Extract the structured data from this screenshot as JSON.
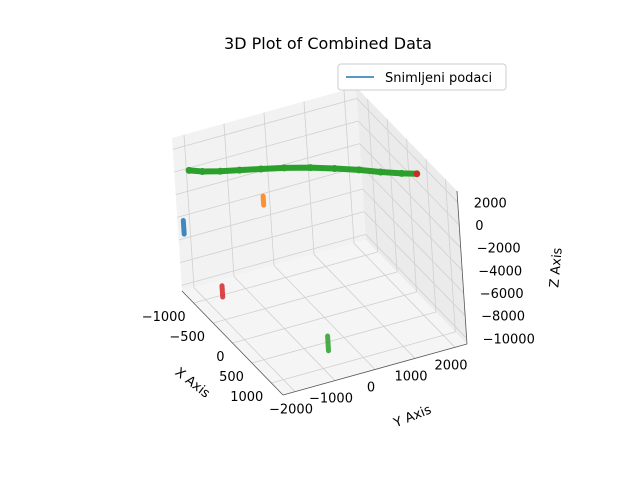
{
  "chart_data": {
    "type": "scatter3d",
    "title": "3D Plot of Combined Data",
    "xlabel": "X Axis",
    "ylabel": "Y Axis",
    "zlabel": "Z Axis",
    "xlim": [
      -1300,
      1300
    ],
    "ylim": [
      -2300,
      2300
    ],
    "zlim": [
      -10500,
      3000
    ],
    "x_ticks": [
      -1000,
      -500,
      0,
      500,
      1000
    ],
    "y_ticks": [
      -2000,
      -1000,
      0,
      1000,
      2000
    ],
    "z_ticks": [
      2000,
      0,
      -2000,
      -4000,
      -6000,
      -8000,
      -10000
    ],
    "x_tick_labels": [
      "−1000",
      "−500",
      "0",
      "500",
      "1000"
    ],
    "y_tick_labels": [
      "−2000",
      "−1000",
      "0",
      "1000",
      "2000"
    ],
    "z_tick_labels": [
      "2000",
      "0",
      "−2000",
      "−4000",
      "−6000",
      "−8000",
      "−10000"
    ],
    "grid": true,
    "legend": {
      "placement": "top-right",
      "entries": [
        "Snimljeni podaci"
      ]
    },
    "colors": {
      "line": "#1f77b4",
      "blue": "#1f77b4",
      "orange": "#ff7f0e",
      "green": "#2ca02c",
      "red": "#d62728",
      "pane_back": "#f2f2f2",
      "pane_side": "#ebebeb",
      "pane_floor": "#f5f5f5",
      "grid": "#d0d0d0"
    },
    "series": [
      {
        "color": "#1f77b4",
        "marker": "scatter",
        "x": [
          -1250,
          -1250
        ],
        "y": [
          -2200,
          -2200
        ],
        "z": [
          -5400,
          -4200
        ]
      },
      {
        "color": "#d62728",
        "marker": "scatter",
        "x": [
          -300,
          -300
        ],
        "y": [
          -2200,
          -2200
        ],
        "z": [
          -7600,
          -6600
        ]
      },
      {
        "color": "#ff7f0e",
        "marker": "scatter",
        "x": [
          -1250,
          -1250
        ],
        "y": [
          -200,
          -200
        ],
        "z": [
          -4800,
          -4000
        ]
      },
      {
        "color": "#2ca02c",
        "marker": "scatter",
        "x": [
          950,
          950
        ],
        "y": [
          -800,
          -800
        ],
        "z": [
          -9300,
          -8000
        ]
      },
      {
        "color": "#2ca02c",
        "edge": "#d62728",
        "marker": "trajectory",
        "x": [
          -1000,
          -860,
          -700,
          -560,
          -420,
          -280,
          -120,
          40,
          200,
          350,
          480,
          560
        ],
        "y": [
          -2200,
          -2000,
          -1700,
          -1350,
          -950,
          -500,
          0,
          450,
          900,
          1300,
          1700,
          2000
        ],
        "z": [
          1100,
          1300,
          1600,
          1850,
          2050,
          2200,
          2300,
          2350,
          2350,
          2300,
          2250,
          2200
        ]
      }
    ]
  }
}
